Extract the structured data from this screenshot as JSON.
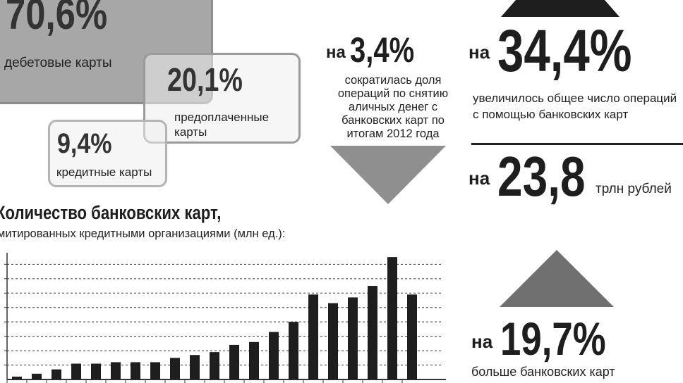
{
  "shares": {
    "debit": {
      "value": "70,6%",
      "label": "дебетовые карты"
    },
    "prepaid": {
      "value": "20,1%",
      "label": "предоплаченные карты"
    },
    "credit": {
      "value": "9,4%",
      "label": "кредитные карты"
    }
  },
  "stats": {
    "cash_share": {
      "prefix": "на",
      "value": "3,4%",
      "text": "сократилась доля операций по снятию аличных денег с банковских карт по итогам 2012 года",
      "direction": "down"
    },
    "operations": {
      "prefix": "на",
      "value": "34,4%",
      "text": "увеличилось общее число операций с помощью банковских карт",
      "direction": "up"
    },
    "volume": {
      "prefix": "на",
      "value": "23,8",
      "unit": "трлн рублей"
    },
    "cards": {
      "prefix": "на",
      "value": "19,7%",
      "text": "больше банковских карт",
      "direction": "up"
    }
  },
  "colors": {
    "bar": "#1e1e1e",
    "debit_box": "#a7a7a7",
    "arrow": "#8f8f8f",
    "grid": "#333333"
  },
  "chart_data": {
    "type": "bar",
    "title": "Количество банковских карт,",
    "subtitle": "митированных кредитными организациями (млн ед.):",
    "values": [
      2,
      4,
      7,
      11,
      11,
      12,
      12,
      12,
      15,
      17,
      19,
      24,
      26,
      33,
      40,
      59,
      53,
      57,
      65,
      85,
      59
    ],
    "ylim": [
      0,
      88
    ],
    "grid": true
  }
}
